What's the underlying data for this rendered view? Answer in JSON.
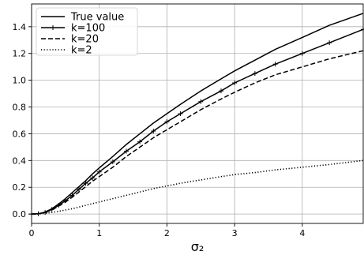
{
  "chart_data": {
    "type": "line",
    "xlabel": "σ₂",
    "ylabel": "",
    "xlim": [
      0,
      4.9
    ],
    "ylim": [
      -0.07,
      1.57
    ],
    "xticks": [
      "0",
      "1",
      "2",
      "3",
      "4"
    ],
    "yticks": [
      "0.0",
      "0.2",
      "0.4",
      "0.6",
      "0.8",
      "1.0",
      "1.2",
      "1.4"
    ],
    "grid": true,
    "legend_position": "top-left",
    "series": [
      {
        "name": "True value",
        "style": "solid",
        "color": "#000000",
        "x": [
          0,
          0.1,
          0.2,
          0.3,
          0.4,
          0.5,
          0.6,
          0.7,
          0.8,
          0.9,
          1.0,
          1.2,
          1.4,
          1.6,
          1.8,
          2.0,
          2.2,
          2.5,
          2.8,
          3.0,
          3.3,
          3.6,
          4.0,
          4.4,
          4.9
        ],
        "y": [
          0.0,
          0.002,
          0.015,
          0.04,
          0.075,
          0.115,
          0.16,
          0.205,
          0.25,
          0.3,
          0.345,
          0.43,
          0.52,
          0.6,
          0.68,
          0.75,
          0.82,
          0.92,
          1.01,
          1.07,
          1.15,
          1.23,
          1.32,
          1.41,
          1.5
        ]
      },
      {
        "name": "k=100",
        "style": "solid-marker",
        "color": "#000000",
        "x": [
          0,
          0.1,
          0.2,
          0.3,
          0.4,
          0.5,
          0.6,
          0.7,
          0.8,
          0.9,
          1.0,
          1.2,
          1.4,
          1.6,
          1.8,
          2.0,
          2.2,
          2.5,
          2.8,
          3.0,
          3.3,
          3.6,
          4.0,
          4.4,
          4.9
        ],
        "y": [
          0.0,
          0.002,
          0.012,
          0.035,
          0.065,
          0.1,
          0.14,
          0.185,
          0.23,
          0.27,
          0.315,
          0.39,
          0.47,
          0.54,
          0.62,
          0.69,
          0.75,
          0.84,
          0.92,
          0.98,
          1.05,
          1.12,
          1.2,
          1.28,
          1.38
        ]
      },
      {
        "name": "k=20",
        "style": "dashed",
        "color": "#000000",
        "x": [
          0,
          0.1,
          0.2,
          0.3,
          0.4,
          0.5,
          0.6,
          0.7,
          0.8,
          0.9,
          1.0,
          1.2,
          1.4,
          1.6,
          1.8,
          2.0,
          2.2,
          2.5,
          2.8,
          3.0,
          3.3,
          3.6,
          4.0,
          4.4,
          4.9
        ],
        "y": [
          0.0,
          0.002,
          0.012,
          0.03,
          0.06,
          0.09,
          0.125,
          0.165,
          0.205,
          0.245,
          0.28,
          0.35,
          0.43,
          0.5,
          0.57,
          0.63,
          0.69,
          0.78,
          0.86,
          0.91,
          0.98,
          1.04,
          1.1,
          1.16,
          1.22
        ]
      },
      {
        "name": "k=2",
        "style": "dotted",
        "color": "#000000",
        "x": [
          0,
          0.1,
          0.2,
          0.3,
          0.4,
          0.5,
          0.6,
          0.7,
          0.8,
          0.9,
          1.0,
          1.2,
          1.4,
          1.6,
          1.8,
          2.0,
          2.2,
          2.5,
          2.8,
          3.0,
          3.3,
          3.6,
          4.0,
          4.4,
          4.9
        ],
        "y": [
          0.0,
          0.001,
          0.005,
          0.012,
          0.02,
          0.03,
          0.04,
          0.052,
          0.065,
          0.078,
          0.09,
          0.115,
          0.14,
          0.165,
          0.19,
          0.21,
          0.23,
          0.255,
          0.28,
          0.295,
          0.31,
          0.33,
          0.35,
          0.37,
          0.4
        ]
      }
    ]
  }
}
